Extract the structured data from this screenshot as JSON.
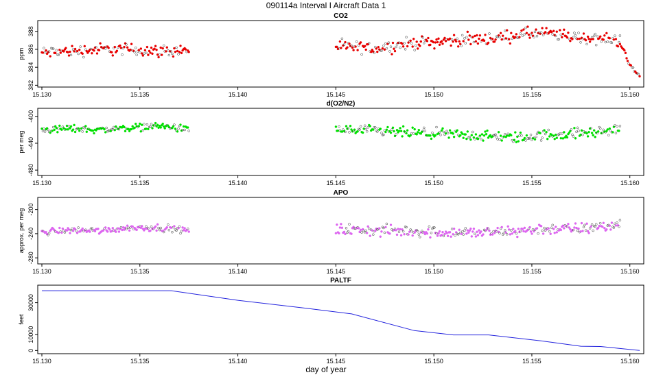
{
  "figure": {
    "title": "090114a   Interval I Aircraft Data 1",
    "xlabel": "day of year"
  },
  "chart_data": [
    {
      "type": "scatter",
      "title": "CO2",
      "ylabel": "ppm",
      "xlim": [
        15.13,
        15.1605
      ],
      "ylim": [
        381.8,
        389.2
      ],
      "xticks": [
        "15.130",
        "15.135",
        "15.140",
        "15.145",
        "15.150",
        "15.155",
        "15.160"
      ],
      "xtick_values": [
        15.13,
        15.135,
        15.14,
        15.145,
        15.15,
        15.155,
        15.16
      ],
      "yticks": [
        "382",
        "384",
        "386",
        "388"
      ],
      "ytick_values": [
        382,
        384,
        386,
        388
      ],
      "series": [
        {
          "color": "#e80000",
          "segments": [
            {
              "x": [
                15.13,
                15.1315,
                15.133,
                15.1345,
                15.136,
                15.1375
              ],
              "y": [
                385.6,
                385.8,
                386.0,
                386.0,
                385.8,
                385.9
              ],
              "spread": 1.0
            },
            {
              "x": [
                15.145,
                15.147,
                15.149,
                15.151,
                15.153,
                15.1545,
                15.1555,
                15.1575,
                15.1595
              ],
              "y": [
                386.3,
                386.1,
                386.7,
                387.0,
                387.2,
                387.7,
                387.8,
                387.3,
                387.0
              ],
              "spread": 1.0
            },
            {
              "x": [
                15.1595,
                15.16,
                15.1605
              ],
              "y": [
                386.8,
                384.2,
                383.0
              ],
              "spread": 0.5
            }
          ]
        }
      ]
    },
    {
      "type": "scatter",
      "title": "d(O2/N2)",
      "ylabel": "per meg",
      "xlim": [
        15.13,
        15.1605
      ],
      "ylim": [
        -488,
        -388
      ],
      "xticks": [
        "15.130",
        "15.135",
        "15.140",
        "15.145",
        "15.150",
        "15.155",
        "15.160"
      ],
      "xtick_values": [
        15.13,
        15.135,
        15.14,
        15.145,
        15.15,
        15.155,
        15.16
      ],
      "yticks": [
        "-480",
        "-440",
        "-400"
      ],
      "ytick_values": [
        -480,
        -440,
        -400
      ],
      "series": [
        {
          "color": "#00e000",
          "segments": [
            {
              "x": [
                15.13,
                15.1315,
                15.133,
                15.1345,
                15.136,
                15.1375
              ],
              "y": [
                -420,
                -418,
                -420,
                -417,
                -414,
                -420
              ],
              "spread": 8
            },
            {
              "x": [
                15.145,
                15.147,
                15.149,
                15.151,
                15.153,
                15.1545,
                15.1555,
                15.1575,
                15.1595
              ],
              "y": [
                -420,
                -422,
                -425,
                -427,
                -430,
                -432,
                -428,
                -425,
                -420
              ],
              "spread": 12
            }
          ]
        }
      ]
    },
    {
      "type": "scatter",
      "title": "APO",
      "ylabel": "approx. per meg",
      "xlim": [
        15.13,
        15.1605
      ],
      "ylim": [
        -290,
        -180
      ],
      "xticks": [
        "15.130",
        "15.135",
        "15.140",
        "15.145",
        "15.150",
        "15.155",
        "15.160"
      ],
      "xtick_values": [
        15.13,
        15.135,
        15.14,
        15.145,
        15.15,
        15.155,
        15.16
      ],
      "yticks": [
        "-280",
        "-240",
        "-200"
      ],
      "ytick_values": [
        -280,
        -240,
        -200
      ],
      "series": [
        {
          "color": "#dd66f0",
          "segments": [
            {
              "x": [
                15.13,
                15.1315,
                15.133,
                15.1345,
                15.136,
                15.1375
              ],
              "y": [
                -237,
                -234,
                -235,
                -230,
                -230,
                -235
              ],
              "spread": 8
            },
            {
              "x": [
                15.145,
                15.147,
                15.149,
                15.151,
                15.153,
                15.1545,
                15.1555,
                15.1575,
                15.1595
              ],
              "y": [
                -233,
                -235,
                -236,
                -238,
                -238,
                -235,
                -232,
                -232,
                -225
              ],
              "spread": 14
            }
          ]
        }
      ]
    },
    {
      "type": "line",
      "title": "PALTF",
      "ylabel": "feet",
      "xlim": [
        15.13,
        15.1605
      ],
      "ylim": [
        -2000,
        41000
      ],
      "xticks": [
        "15.130",
        "15.135",
        "15.140",
        "15.145",
        "15.150",
        "15.155",
        "15.160"
      ],
      "xtick_values": [
        15.13,
        15.135,
        15.14,
        15.145,
        15.15,
        15.155,
        15.16
      ],
      "yticks": [
        "0",
        "10000",
        "30000"
      ],
      "ytick_values": [
        0,
        10000,
        30000
      ],
      "series": [
        {
          "color": "#2222dd",
          "x": [
            15.13,
            15.1366,
            15.14,
            15.1435,
            15.1458,
            15.149,
            15.151,
            15.1528,
            15.1555,
            15.1575,
            15.1585,
            15.1605
          ],
          "y": [
            37500,
            37500,
            31500,
            26500,
            23000,
            12500,
            9800,
            9800,
            6000,
            2700,
            2500,
            0
          ]
        }
      ]
    }
  ]
}
